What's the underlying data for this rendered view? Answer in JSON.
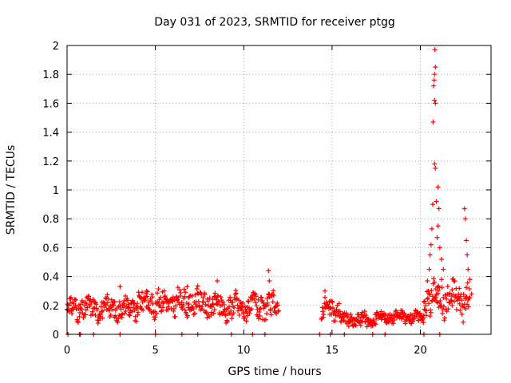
{
  "chart_data": {
    "type": "scatter",
    "title": "Day 031 of 2023, SRMTID for receiver ptgg",
    "xlabel": "GPS time / hours",
    "ylabel": "SRMTID / TECUs",
    "xlim": [
      0,
      24
    ],
    "ylim": [
      0,
      2
    ],
    "x_ticks": [
      0,
      5,
      10,
      15,
      20
    ],
    "y_ticks": [
      0,
      0.2,
      0.4,
      0.6,
      0.8,
      1,
      1.2,
      1.4,
      1.6,
      1.8,
      2
    ],
    "x_tick_labels": [
      "0",
      "5",
      "10",
      "15",
      "20"
    ],
    "y_tick_labels": [
      "0",
      "0.2",
      "0.4",
      "0.6",
      "0.8",
      "1",
      "1.2",
      "1.4",
      "1.6",
      "1.8",
      "2"
    ],
    "grid": true,
    "marker": "+",
    "color": "#ff0000",
    "series": [
      {
        "name": "ptgg",
        "segments": [
          {
            "x_start": 0.0,
            "x_end": 4.0,
            "base": 0.18,
            "spread": 0.08
          },
          {
            "x_start": 4.0,
            "x_end": 8.0,
            "base": 0.22,
            "spread": 0.09
          },
          {
            "x_start": 8.0,
            "x_end": 12.0,
            "base": 0.19,
            "spread": 0.09
          },
          {
            "x_start": 14.4,
            "x_end": 15.5,
            "base": 0.17,
            "spread": 0.07
          },
          {
            "x_start": 15.5,
            "x_end": 17.5,
            "base": 0.1,
            "spread": 0.05
          },
          {
            "x_start": 17.5,
            "x_end": 20.2,
            "base": 0.12,
            "spread": 0.04
          },
          {
            "x_start": 20.2,
            "x_end": 22.8,
            "base": 0.25,
            "spread": 0.12
          }
        ],
        "points": [
          {
            "x": 0.05,
            "y": 0.0
          },
          {
            "x": 0.7,
            "y": 0.0
          },
          {
            "x": 0.75,
            "y": 0.0
          },
          {
            "x": 1.5,
            "y": 0.0
          },
          {
            "x": 3.0,
            "y": 0.0
          },
          {
            "x": 5.0,
            "y": 0.0
          },
          {
            "x": 6.5,
            "y": 0.0
          },
          {
            "x": 7.4,
            "y": 0.0
          },
          {
            "x": 9.3,
            "y": 0.0
          },
          {
            "x": 10.5,
            "y": 0.0
          },
          {
            "x": 11.2,
            "y": 0.0
          },
          {
            "x": 14.3,
            "y": 0.0
          },
          {
            "x": 14.9,
            "y": 0.0
          },
          {
            "x": 15.7,
            "y": 0.0
          },
          {
            "x": 17.3,
            "y": 0.0
          },
          {
            "x": 18.0,
            "y": 0.0
          },
          {
            "x": 20.2,
            "y": 0.0
          },
          {
            "x": 21.1,
            "y": 0.0
          },
          {
            "x": 11.4,
            "y": 0.44
          },
          {
            "x": 11.45,
            "y": 0.37
          },
          {
            "x": 8.5,
            "y": 0.37
          },
          {
            "x": 6.8,
            "y": 0.33
          },
          {
            "x": 3.0,
            "y": 0.33
          },
          {
            "x": 4.5,
            "y": 0.3
          },
          {
            "x": 14.6,
            "y": 0.3
          },
          {
            "x": 20.4,
            "y": 0.37
          },
          {
            "x": 20.5,
            "y": 0.45
          },
          {
            "x": 20.55,
            "y": 0.55
          },
          {
            "x": 20.6,
            "y": 0.62
          },
          {
            "x": 20.65,
            "y": 0.73
          },
          {
            "x": 20.7,
            "y": 0.9
          },
          {
            "x": 20.72,
            "y": 1.47
          },
          {
            "x": 20.75,
            "y": 1.72
          },
          {
            "x": 20.78,
            "y": 1.76
          },
          {
            "x": 20.8,
            "y": 1.8
          },
          {
            "x": 20.82,
            "y": 1.97
          },
          {
            "x": 20.85,
            "y": 1.85
          },
          {
            "x": 20.8,
            "y": 1.62
          },
          {
            "x": 20.85,
            "y": 1.6
          },
          {
            "x": 20.8,
            "y": 1.18
          },
          {
            "x": 20.85,
            "y": 1.15
          },
          {
            "x": 20.9,
            "y": 0.92
          },
          {
            "x": 21.0,
            "y": 1.02
          },
          {
            "x": 21.05,
            "y": 0.87
          },
          {
            "x": 21.0,
            "y": 0.75
          },
          {
            "x": 20.95,
            "y": 0.67
          },
          {
            "x": 21.1,
            "y": 0.6
          },
          {
            "x": 21.2,
            "y": 0.52
          },
          {
            "x": 21.3,
            "y": 0.45
          },
          {
            "x": 21.2,
            "y": 0.38
          },
          {
            "x": 21.0,
            "y": 0.3
          },
          {
            "x": 22.5,
            "y": 0.87
          },
          {
            "x": 22.55,
            "y": 0.8
          },
          {
            "x": 22.6,
            "y": 0.65
          },
          {
            "x": 22.65,
            "y": 0.55
          },
          {
            "x": 22.7,
            "y": 0.45
          },
          {
            "x": 22.8,
            "y": 0.38
          },
          {
            "x": 22.9,
            "y": 0.28
          },
          {
            "x": 22.2,
            "y": 0.25
          },
          {
            "x": 21.8,
            "y": 0.2
          }
        ]
      }
    ]
  }
}
